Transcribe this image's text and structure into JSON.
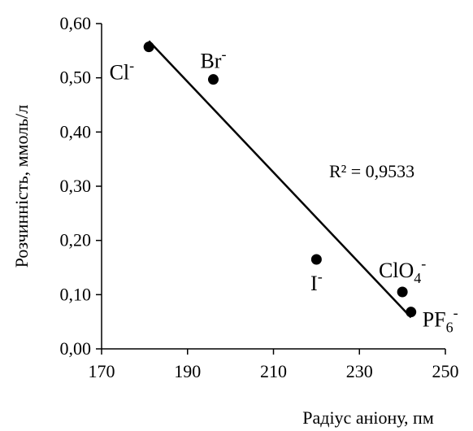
{
  "chart_data": {
    "type": "scatter",
    "title": "",
    "xlabel": "Радіус аніону, пм",
    "ylabel": "Розчинність, ммоль/л",
    "xlim": [
      170,
      250
    ],
    "ylim": [
      0.0,
      0.6
    ],
    "x_ticks": [
      170,
      190,
      210,
      230,
      250
    ],
    "x_tick_labels": [
      "170",
      "190",
      "210",
      "230",
      "250"
    ],
    "y_ticks": [
      0.0,
      0.1,
      0.2,
      0.3,
      0.4,
      0.5,
      0.6
    ],
    "y_tick_labels": [
      "0,00",
      "0,10",
      "0,20",
      "0,30",
      "0,40",
      "0,50",
      "0,60"
    ],
    "grid": false,
    "legend": "none",
    "points": [
      {
        "x": 181,
        "y": 0.557,
        "base": "Cl",
        "sub": "",
        "sup": "-"
      },
      {
        "x": 196,
        "y": 0.497,
        "base": "Br",
        "sub": "",
        "sup": "-"
      },
      {
        "x": 220,
        "y": 0.165,
        "base": "I",
        "sub": "",
        "sup": "-"
      },
      {
        "x": 240,
        "y": 0.105,
        "base": "ClO",
        "sub": "4",
        "sup": "-"
      },
      {
        "x": 242,
        "y": 0.068,
        "base": "PF",
        "sub": "6",
        "sup": "-"
      }
    ],
    "trendline": {
      "type": "linear",
      "x": [
        181,
        242
      ],
      "y": [
        0.568,
        0.058
      ],
      "r2_label": "R² = 0,9533"
    },
    "colors": {
      "marker": "#000000",
      "line": "#000000",
      "axis": "#000000"
    }
  }
}
